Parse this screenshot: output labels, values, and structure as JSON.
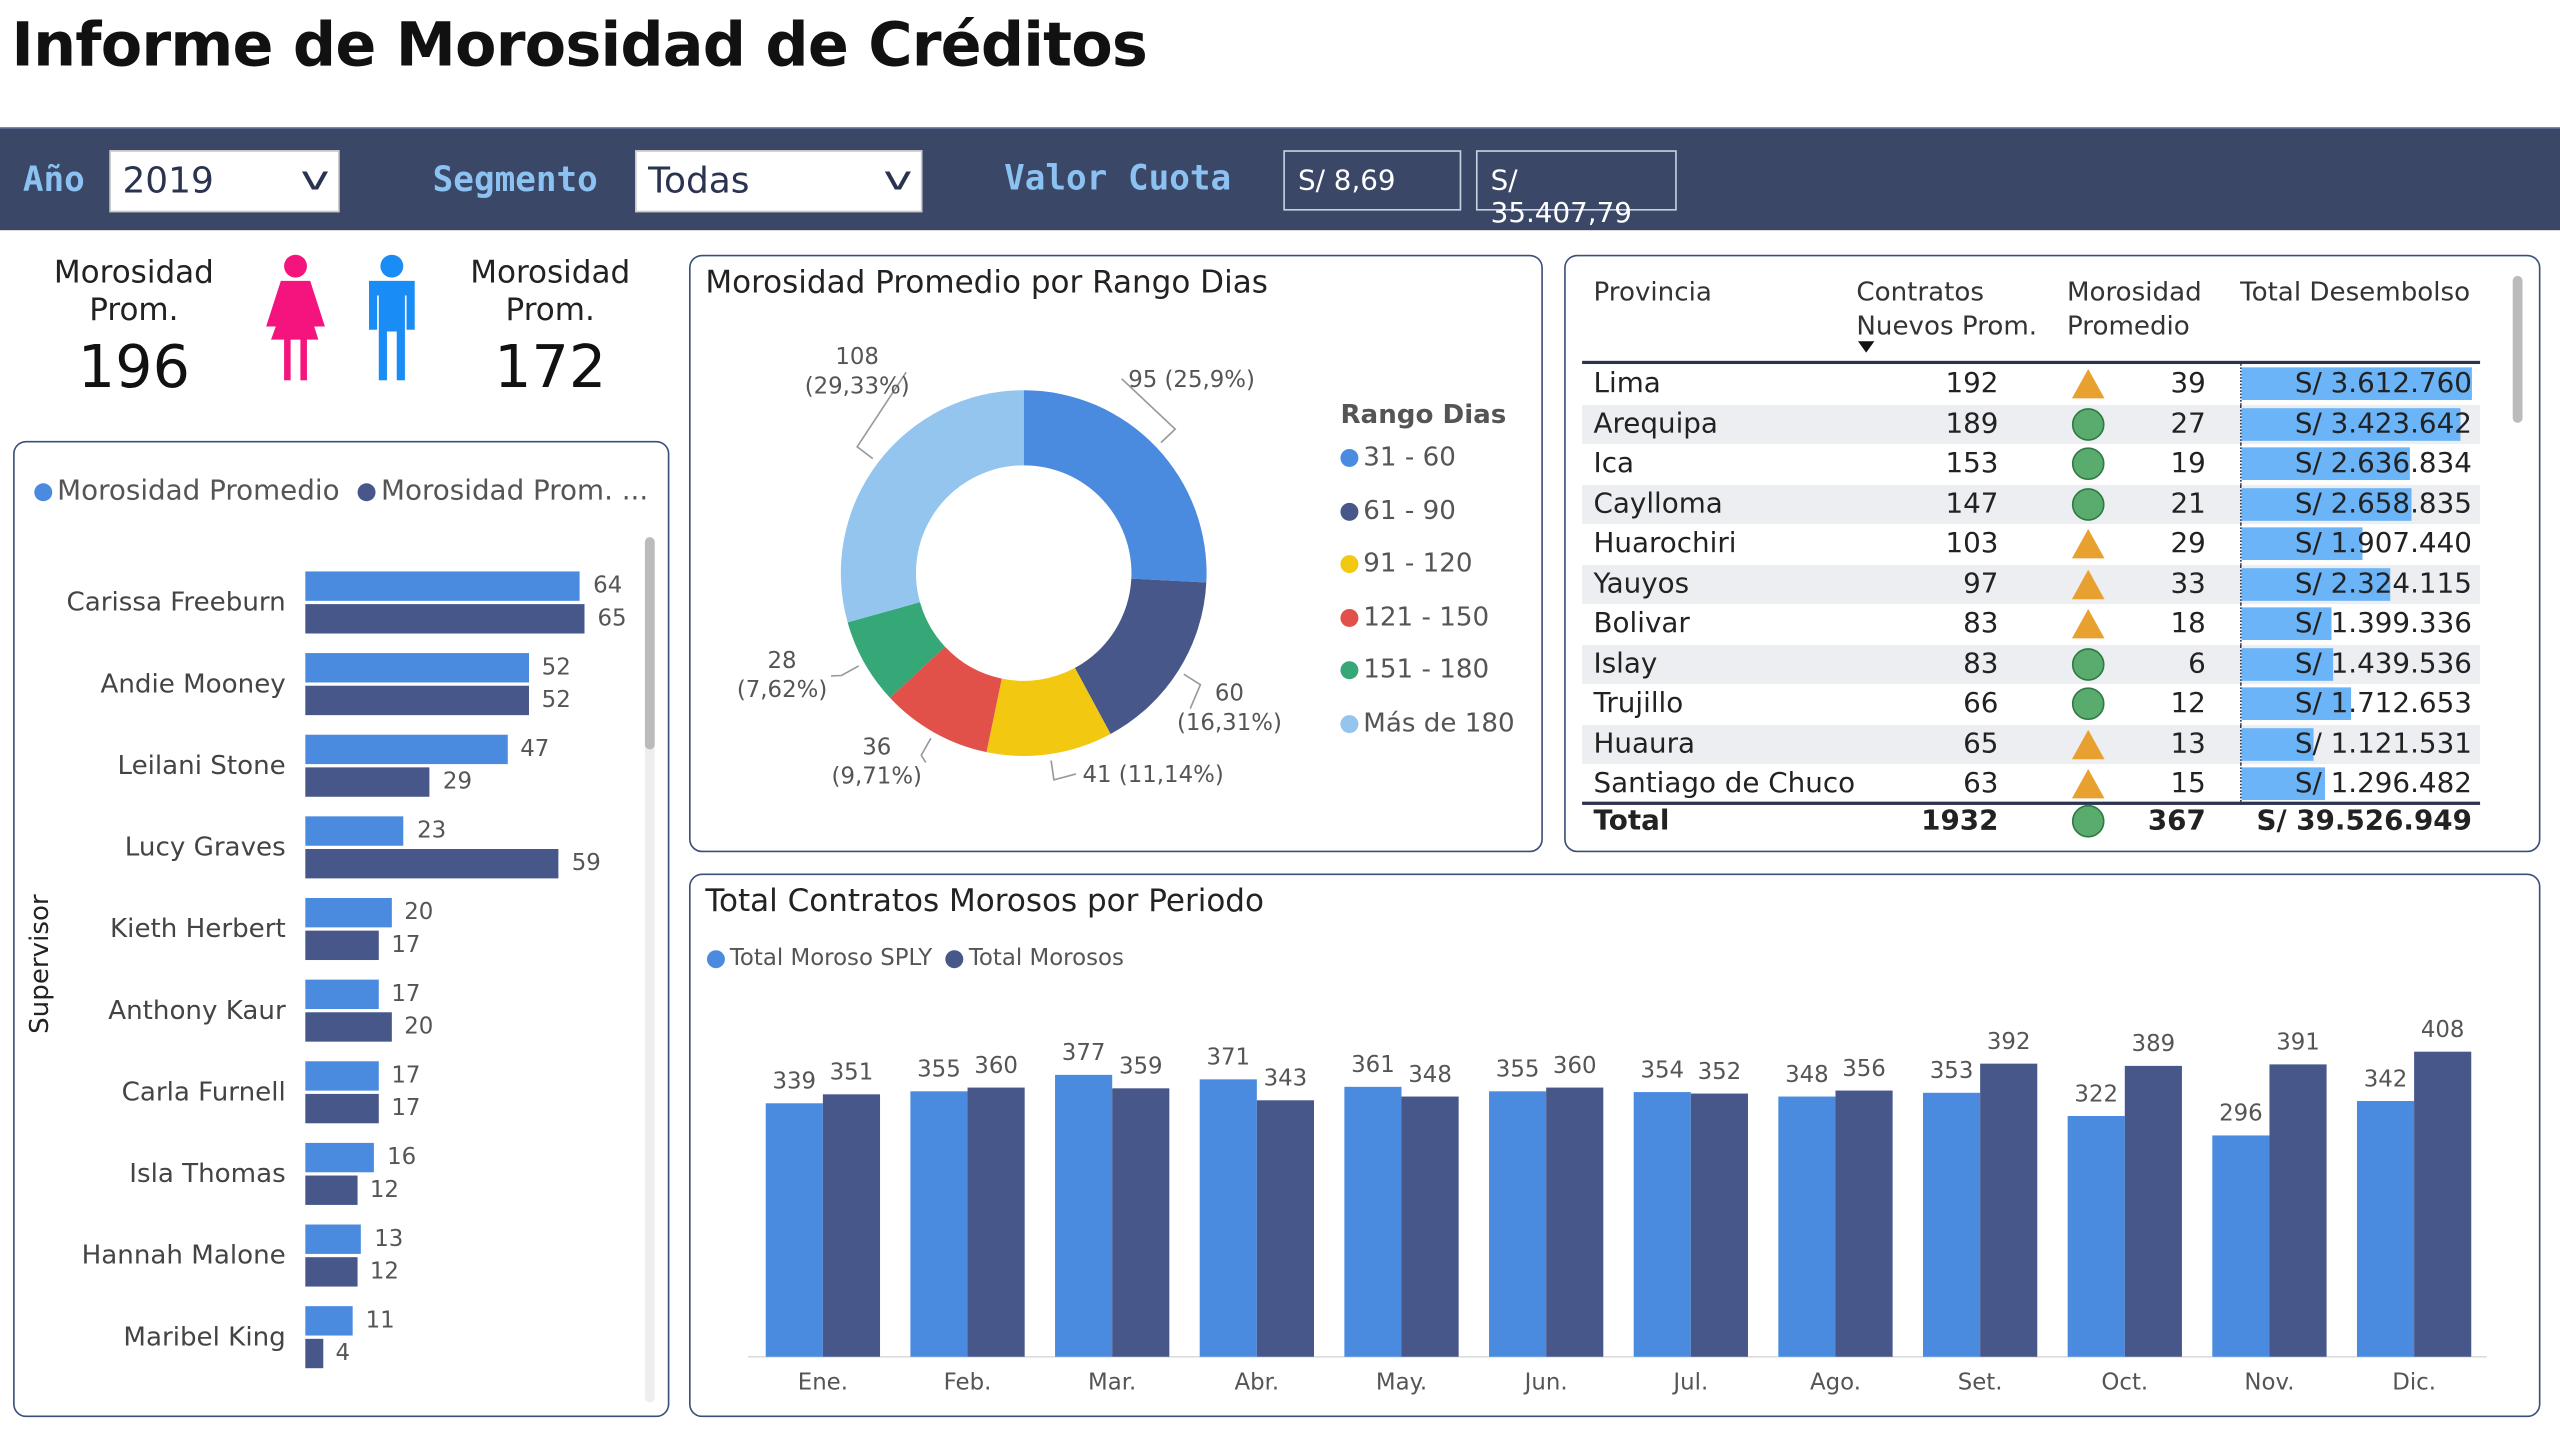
{
  "title": "Informe de Morosidad de Créditos",
  "filters": {
    "year_label": "Año",
    "year_value": "2019",
    "segment_label": "Segmento",
    "segment_value": "Todas",
    "valor_cuota_label": "Valor Cuota",
    "valor_cuota_min": "S/ 8,69",
    "valor_cuota_max": "S/ 35.407,79"
  },
  "kpis": {
    "female": {
      "label": "Morosidad Prom.",
      "value": "196",
      "color": "#f5147e",
      "icon": "female-icon"
    },
    "male": {
      "label": "Morosidad Prom.",
      "value": "172",
      "color": "#1a8cf5",
      "icon": "male-icon"
    }
  },
  "supervisor_chart": {
    "type": "bar",
    "orientation": "horizontal",
    "ylabel": "Supervisor",
    "legend": [
      "Morosidad Promedio",
      "Morosidad Prom. ..."
    ],
    "colors": [
      "#4a8be0",
      "#47578a"
    ],
    "categories": [
      "Carissa Freeburn",
      "Andie Mooney",
      "Leilani Stone",
      "Lucy Graves",
      "Kieth Herbert",
      "Anthony Kaur",
      "Carla Furnell",
      "Isla Thomas",
      "Hannah Malone",
      "Maribel King"
    ],
    "series": [
      {
        "name": "Morosidad Promedio",
        "values": [
          64,
          52,
          47,
          23,
          20,
          17,
          17,
          16,
          13,
          11
        ]
      },
      {
        "name": "Morosidad Prom. ...",
        "values": [
          65,
          52,
          29,
          59,
          17,
          20,
          17,
          12,
          12,
          4
        ]
      }
    ]
  },
  "chart_data": [
    {
      "type": "pie",
      "donut": true,
      "title": "Morosidad Promedio por Rango Dias",
      "legend_title": "Rango Dias",
      "categories": [
        "31 - 60",
        "61 - 90",
        "91 - 120",
        "121 - 150",
        "151 - 180",
        "Más de 180"
      ],
      "values": [
        95,
        60,
        41,
        36,
        28,
        108
      ],
      "labels": [
        "95 (25,9%)",
        "60 (16,31%)",
        "41 (11,14%)",
        "36 (9,71%)",
        "28 (7,62%)",
        "108 (29,33%)"
      ],
      "colors": [
        "#4a8be0",
        "#47578a",
        "#f2c811",
        "#e2504a",
        "#36a878",
        "#93c5ee"
      ]
    },
    {
      "type": "bar",
      "title": "Total Contratos Morosos por Periodo",
      "categories": [
        "Ene.",
        "Feb.",
        "Mar.",
        "Abr.",
        "May.",
        "Jun.",
        "Jul.",
        "Ago.",
        "Set.",
        "Oct.",
        "Nov.",
        "Dic."
      ],
      "series": [
        {
          "name": "Total Moroso SPLY",
          "color": "#4a8be0",
          "values": [
            339,
            355,
            377,
            371,
            361,
            355,
            354,
            348,
            353,
            322,
            296,
            342
          ]
        },
        {
          "name": "Total Morosos",
          "color": "#47578a",
          "values": [
            351,
            360,
            359,
            343,
            348,
            360,
            352,
            356,
            392,
            389,
            391,
            408
          ]
        }
      ]
    }
  ],
  "table": {
    "headers": [
      "Provincia",
      "Contratos Nuevos Prom.",
      "Morosidad Promedio",
      "Total Desembolso"
    ],
    "sort_icon": "sort-descending-icon",
    "rows": [
      {
        "provincia": "Lima",
        "contratos": "192",
        "status": "triangle",
        "morosidad": "39",
        "desembolso": "S/ 3.612.760",
        "amount": 3612760
      },
      {
        "provincia": "Arequipa",
        "contratos": "189",
        "status": "circle",
        "morosidad": "27",
        "desembolso": "S/ 3.423.642",
        "amount": 3423642
      },
      {
        "provincia": "Ica",
        "contratos": "153",
        "status": "circle",
        "morosidad": "19",
        "desembolso": "S/ 2.636.834",
        "amount": 2636834
      },
      {
        "provincia": "Caylloma",
        "contratos": "147",
        "status": "circle",
        "morosidad": "21",
        "desembolso": "S/ 2.658.835",
        "amount": 2658835
      },
      {
        "provincia": "Huarochiri",
        "contratos": "103",
        "status": "triangle",
        "morosidad": "29",
        "desembolso": "S/ 1.907.440",
        "amount": 1907440
      },
      {
        "provincia": "Yauyos",
        "contratos": "97",
        "status": "triangle",
        "morosidad": "33",
        "desembolso": "S/ 2.324.115",
        "amount": 2324115
      },
      {
        "provincia": "Bolivar",
        "contratos": "83",
        "status": "triangle",
        "morosidad": "18",
        "desembolso": "S/ 1.399.336",
        "amount": 1399336
      },
      {
        "provincia": "Islay",
        "contratos": "83",
        "status": "circle",
        "morosidad": "6",
        "desembolso": "S/ 1.439.536",
        "amount": 1439536
      },
      {
        "provincia": "Trujillo",
        "contratos": "66",
        "status": "circle",
        "morosidad": "12",
        "desembolso": "S/ 1.712.653",
        "amount": 1712653
      },
      {
        "provincia": "Huaura",
        "contratos": "65",
        "status": "triangle",
        "morosidad": "13",
        "desembolso": "S/ 1.121.531",
        "amount": 1121531
      },
      {
        "provincia": "Santiago de Chuco",
        "contratos": "63",
        "status": "triangle",
        "morosidad": "15",
        "desembolso": "S/ 1.296.482",
        "amount": 1296482
      }
    ],
    "total": {
      "provincia": "Total",
      "contratos": "1932",
      "status": "circle",
      "morosidad": "367",
      "desembolso": "S/ 39.526.949"
    },
    "colors": {
      "databar": "#6cb4f8",
      "triangle": "#e8a030",
      "circle": "#5aab6e",
      "row_alt": "#eceef1"
    }
  }
}
